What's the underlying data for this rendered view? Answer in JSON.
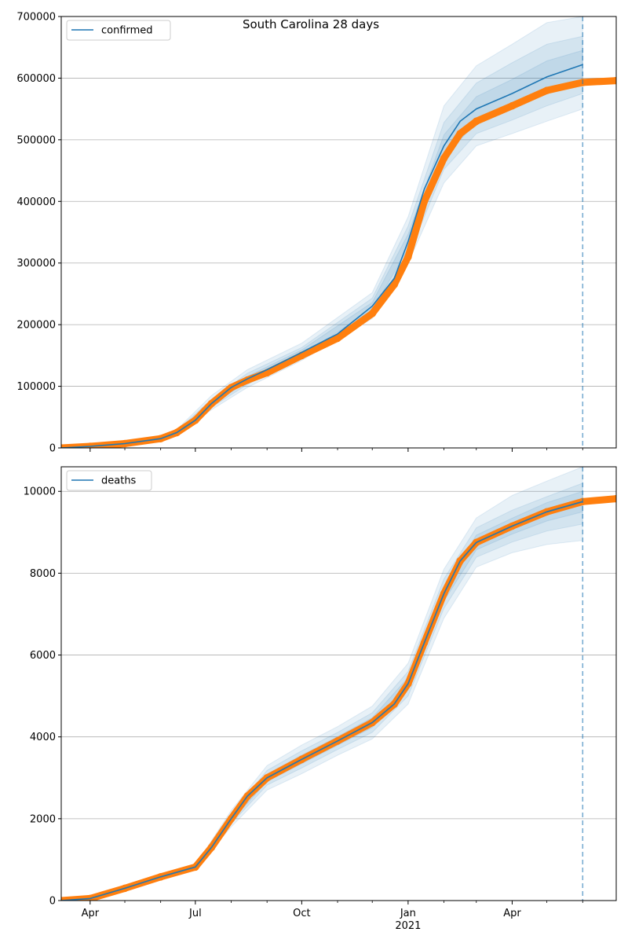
{
  "figure_title": "South Carolina 28 days",
  "colors": {
    "model": "#1f77b4",
    "observed": "#ff7f0e",
    "band": "#1f77b4",
    "grid": "#b0b0b0"
  },
  "chart_data": [
    {
      "type": "line",
      "legend": "confirmed",
      "legend_position": "top-left",
      "grid": "y",
      "x_range": [
        "2020-03-07",
        "2021-06-30"
      ],
      "ylim": [
        0,
        700000
      ],
      "yticks": [
        0,
        100000,
        200000,
        300000,
        400000,
        500000,
        600000,
        700000
      ],
      "xticks": [],
      "forecast_date": "2021-06-01",
      "model_line": {
        "name": "confirmed",
        "x": [
          "2020-03-07",
          "2020-04-01",
          "2020-05-01",
          "2020-06-01",
          "2020-06-15",
          "2020-07-01",
          "2020-07-15",
          "2020-08-01",
          "2020-08-15",
          "2020-09-01",
          "2020-10-01",
          "2020-11-01",
          "2020-12-01",
          "2020-12-20",
          "2021-01-01",
          "2021-01-15",
          "2021-02-01",
          "2021-02-15",
          "2021-03-01",
          "2021-04-01",
          "2021-05-01",
          "2021-06-01"
        ],
        "y": [
          0,
          2500,
          7000,
          15000,
          25000,
          45000,
          72000,
          98000,
          112000,
          127000,
          155000,
          185000,
          230000,
          275000,
          335000,
          420000,
          490000,
          530000,
          550000,
          575000,
          602000,
          622000
        ]
      },
      "bands": [
        {
          "x": [
            "2020-06-15",
            "2020-07-15",
            "2020-08-15",
            "2020-10-01",
            "2020-12-01",
            "2021-01-01",
            "2021-02-01",
            "2021-03-01",
            "2021-04-01",
            "2021-05-01",
            "2021-06-01"
          ],
          "lower": [
            20000,
            62000,
            98000,
            142000,
            210000,
            300000,
            430000,
            490000,
            510000,
            530000,
            550000
          ],
          "upper": [
            30000,
            85000,
            127000,
            170000,
            252000,
            375000,
            555000,
            620000,
            655000,
            690000,
            700000
          ]
        },
        {
          "x": [
            "2020-06-15",
            "2020-07-15",
            "2020-08-15",
            "2020-10-01",
            "2020-12-01",
            "2021-01-01",
            "2021-02-01",
            "2021-03-01",
            "2021-04-01",
            "2021-05-01",
            "2021-06-01"
          ],
          "lower": [
            22000,
            66000,
            103000,
            147000,
            218000,
            312000,
            452000,
            510000,
            532000,
            555000,
            575000
          ],
          "upper": [
            28000,
            79000,
            121000,
            163000,
            243000,
            360000,
            528000,
            592000,
            625000,
            655000,
            668000
          ]
        },
        {
          "x": [
            "2020-06-15",
            "2020-07-15",
            "2020-08-15",
            "2020-10-01",
            "2020-12-01",
            "2021-01-01",
            "2021-02-01",
            "2021-03-01",
            "2021-04-01",
            "2021-05-01",
            "2021-06-01"
          ],
          "lower": [
            23500,
            69000,
            108000,
            151000,
            224000,
            323000,
            472000,
            528000,
            552000,
            578000,
            598000
          ],
          "upper": [
            26500,
            75000,
            116000,
            159000,
            236000,
            347000,
            508000,
            570000,
            598000,
            628000,
            645000
          ]
        }
      ],
      "observed": {
        "x": [
          "2020-03-07",
          "2020-04-01",
          "2020-05-01",
          "2020-06-01",
          "2020-06-15",
          "2020-07-01",
          "2020-07-15",
          "2020-08-01",
          "2020-08-15",
          "2020-09-01",
          "2020-10-01",
          "2020-11-01",
          "2020-12-01",
          "2020-12-20",
          "2021-01-01",
          "2021-01-15",
          "2021-02-01",
          "2021-02-15",
          "2021-03-01",
          "2021-04-01",
          "2021-05-01",
          "2021-06-01",
          "2021-06-30"
        ],
        "y": [
          0,
          2500,
          7000,
          15000,
          25000,
          45000,
          72000,
          98000,
          110000,
          122000,
          150000,
          178000,
          218000,
          265000,
          310000,
          400000,
          470000,
          510000,
          530000,
          555000,
          580000,
          593000,
          596000
        ]
      }
    },
    {
      "type": "line",
      "legend": "deaths",
      "legend_position": "top-left",
      "grid": "y",
      "x_range": [
        "2020-03-07",
        "2021-06-30"
      ],
      "ylim": [
        0,
        10600
      ],
      "yticks": [
        0,
        2000,
        4000,
        6000,
        8000,
        10000
      ],
      "xticks": [
        {
          "date": "2020-04-01",
          "label": "Apr"
        },
        {
          "date": "2020-07-01",
          "label": "Jul"
        },
        {
          "date": "2020-10-01",
          "label": "Oct"
        },
        {
          "date": "2021-01-01",
          "label": "Jan",
          "sublabel": "2021"
        },
        {
          "date": "2021-04-01",
          "label": "Apr"
        }
      ],
      "forecast_date": "2021-06-01",
      "model_line": {
        "name": "deaths",
        "x": [
          "2020-03-07",
          "2020-04-01",
          "2020-05-01",
          "2020-06-01",
          "2020-07-01",
          "2020-07-15",
          "2020-08-01",
          "2020-08-15",
          "2020-09-01",
          "2020-10-01",
          "2020-11-01",
          "2020-12-01",
          "2020-12-20",
          "2021-01-01",
          "2021-01-15",
          "2021-02-01",
          "2021-02-15",
          "2021-03-01",
          "2021-04-01",
          "2021-05-01",
          "2021-06-01"
        ],
        "y": [
          0,
          50,
          300,
          580,
          820,
          1300,
          2000,
          2550,
          3000,
          3450,
          3900,
          4350,
          4800,
          5300,
          6300,
          7500,
          8300,
          8750,
          9150,
          9500,
          9750
        ]
      },
      "bands": [
        {
          "x": [
            "2020-07-01",
            "2020-08-01",
            "2020-09-01",
            "2020-10-01",
            "2020-11-01",
            "2020-12-01",
            "2021-01-01",
            "2021-02-01",
            "2021-03-01",
            "2021-04-01",
            "2021-05-01",
            "2021-06-01"
          ],
          "lower": [
            780,
            1800,
            2700,
            3100,
            3550,
            3950,
            4800,
            6900,
            8150,
            8500,
            8700,
            8800
          ],
          "upper": [
            860,
            2200,
            3300,
            3800,
            4250,
            4750,
            5800,
            8100,
            9350,
            9900,
            10250,
            10600
          ]
        },
        {
          "x": [
            "2020-07-01",
            "2020-08-01",
            "2020-09-01",
            "2020-10-01",
            "2020-11-01",
            "2020-12-01",
            "2021-01-01",
            "2021-02-01",
            "2021-03-01",
            "2021-04-01",
            "2021-05-01",
            "2021-06-01"
          ],
          "lower": [
            795,
            1880,
            2820,
            3240,
            3690,
            4110,
            5000,
            7140,
            8390,
            8760,
            9030,
            9200
          ],
          "upper": [
            845,
            2120,
            3180,
            3660,
            4110,
            4590,
            5600,
            7860,
            9110,
            9540,
            9870,
            10200
          ]
        },
        {
          "x": [
            "2020-07-01",
            "2020-08-01",
            "2020-09-01",
            "2020-10-01",
            "2020-11-01",
            "2020-12-01",
            "2021-01-01",
            "2021-02-01",
            "2021-03-01",
            "2021-04-01",
            "2021-05-01",
            "2021-06-01"
          ],
          "lower": [
            808,
            1940,
            2910,
            3345,
            3795,
            4230,
            5150,
            7320,
            8570,
            8955,
            9275,
            9500
          ],
          "upper": [
            832,
            2060,
            3090,
            3555,
            4005,
            4470,
            5450,
            7680,
            8930,
            9345,
            9725,
            10000
          ]
        }
      ],
      "observed": {
        "x": [
          "2020-03-07",
          "2020-04-01",
          "2020-05-01",
          "2020-06-01",
          "2020-07-01",
          "2020-07-15",
          "2020-08-01",
          "2020-08-15",
          "2020-09-01",
          "2020-10-01",
          "2020-11-01",
          "2020-12-01",
          "2020-12-20",
          "2021-01-01",
          "2021-01-15",
          "2021-02-01",
          "2021-02-15",
          "2021-03-01",
          "2021-04-01",
          "2021-05-01",
          "2021-06-01",
          "2021-06-30"
        ],
        "y": [
          0,
          50,
          300,
          580,
          820,
          1300,
          2000,
          2550,
          3000,
          3450,
          3900,
          4350,
          4800,
          5300,
          6300,
          7500,
          8300,
          8750,
          9150,
          9500,
          9750,
          9820
        ]
      }
    }
  ]
}
